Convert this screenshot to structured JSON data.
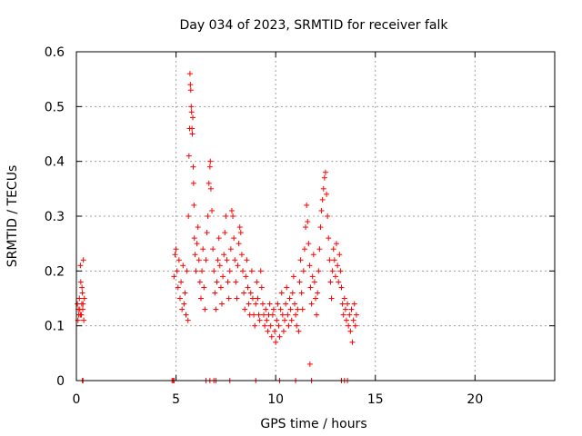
{
  "chart_data": {
    "type": "scatter",
    "title": "Day 034 of 2023, SRMTID for receiver falk",
    "xlabel": "GPS time / hours",
    "ylabel": "SRMTID / TECUs",
    "xlim": [
      0,
      24
    ],
    "ylim": [
      0,
      0.6
    ],
    "xticks": [
      0,
      5,
      10,
      15,
      20
    ],
    "xtick_labels": [
      "0",
      "5",
      "10",
      "15",
      "20"
    ],
    "yticks": [
      0,
      0.1,
      0.2,
      0.3,
      0.4,
      0.5,
      0.6
    ],
    "ytick_labels": [
      "0",
      "0.1",
      "0.2",
      "0.3",
      "0.4",
      "0.5",
      "0.6"
    ],
    "grid": true,
    "marker": "+",
    "color": "#ff0000",
    "series": [
      {
        "name": "SRMTID",
        "points": [
          [
            0.05,
            0.14
          ],
          [
            0.08,
            0.11
          ],
          [
            0.1,
            0.13
          ],
          [
            0.12,
            0.12
          ],
          [
            0.15,
            0.15
          ],
          [
            0.17,
            0.13
          ],
          [
            0.2,
            0.21
          ],
          [
            0.22,
            0.18
          ],
          [
            0.25,
            0.12
          ],
          [
            0.27,
            0.14
          ],
          [
            0.3,
            0.16
          ],
          [
            0.32,
            0.13
          ],
          [
            0.35,
            0.22
          ],
          [
            0.37,
            0.11
          ],
          [
            0.4,
            0.15
          ],
          [
            0.2,
            0.12
          ],
          [
            0.28,
            0.17
          ],
          [
            0.33,
            0.14
          ],
          [
            0.3,
            0.0
          ],
          [
            0.33,
            0.0
          ],
          [
            4.8,
            0.0
          ],
          [
            4.85,
            0.0
          ],
          [
            4.9,
            0.0
          ],
          [
            6.5,
            0.0
          ],
          [
            6.7,
            0.0
          ],
          [
            6.9,
            0.0
          ],
          [
            7.0,
            0.0
          ],
          [
            7.7,
            0.0
          ],
          [
            9.0,
            0.0
          ],
          [
            10.2,
            0.0
          ],
          [
            11.0,
            0.0
          ],
          [
            11.8,
            0.0
          ],
          [
            13.3,
            0.0
          ],
          [
            13.45,
            0.0
          ],
          [
            13.6,
            0.0
          ],
          [
            4.9,
            0.19
          ],
          [
            4.95,
            0.23
          ],
          [
            5.0,
            0.24
          ],
          [
            5.05,
            0.2
          ],
          [
            5.1,
            0.17
          ],
          [
            5.15,
            0.22
          ],
          [
            5.2,
            0.15
          ],
          [
            5.25,
            0.18
          ],
          [
            5.3,
            0.13
          ],
          [
            5.35,
            0.21
          ],
          [
            5.4,
            0.14
          ],
          [
            5.45,
            0.16
          ],
          [
            5.5,
            0.12
          ],
          [
            5.55,
            0.2
          ],
          [
            5.6,
            0.11
          ],
          [
            5.62,
            0.3
          ],
          [
            5.65,
            0.41
          ],
          [
            5.68,
            0.46
          ],
          [
            5.7,
            0.56
          ],
          [
            5.72,
            0.54
          ],
          [
            5.74,
            0.53
          ],
          [
            5.76,
            0.5
          ],
          [
            5.78,
            0.49
          ],
          [
            5.8,
            0.46
          ],
          [
            5.82,
            0.45
          ],
          [
            5.84,
            0.48
          ],
          [
            5.86,
            0.39
          ],
          [
            5.88,
            0.36
          ],
          [
            5.9,
            0.32
          ],
          [
            5.92,
            0.26
          ],
          [
            5.95,
            0.23
          ],
          [
            6.0,
            0.2
          ],
          [
            6.05,
            0.25
          ],
          [
            6.1,
            0.28
          ],
          [
            6.15,
            0.22
          ],
          [
            6.2,
            0.18
          ],
          [
            6.25,
            0.15
          ],
          [
            6.3,
            0.2
          ],
          [
            6.35,
            0.24
          ],
          [
            6.4,
            0.17
          ],
          [
            6.45,
            0.13
          ],
          [
            6.5,
            0.22
          ],
          [
            6.55,
            0.27
          ],
          [
            6.6,
            0.3
          ],
          [
            6.65,
            0.36
          ],
          [
            6.7,
            0.39
          ],
          [
            6.72,
            0.4
          ],
          [
            6.75,
            0.35
          ],
          [
            6.8,
            0.31
          ],
          [
            6.85,
            0.24
          ],
          [
            6.9,
            0.2
          ],
          [
            6.95,
            0.16
          ],
          [
            7.0,
            0.13
          ],
          [
            7.05,
            0.18
          ],
          [
            7.1,
            0.22
          ],
          [
            7.15,
            0.26
          ],
          [
            7.2,
            0.21
          ],
          [
            7.25,
            0.17
          ],
          [
            7.3,
            0.14
          ],
          [
            7.35,
            0.19
          ],
          [
            7.4,
            0.23
          ],
          [
            7.45,
            0.27
          ],
          [
            7.5,
            0.3
          ],
          [
            7.55,
            0.22
          ],
          [
            7.6,
            0.18
          ],
          [
            7.65,
            0.15
          ],
          [
            7.7,
            0.2
          ],
          [
            7.75,
            0.24
          ],
          [
            7.8,
            0.31
          ],
          [
            7.85,
            0.3
          ],
          [
            7.9,
            0.26
          ],
          [
            7.95,
            0.22
          ],
          [
            8.0,
            0.18
          ],
          [
            8.05,
            0.15
          ],
          [
            8.1,
            0.21
          ],
          [
            8.15,
            0.25
          ],
          [
            8.2,
            0.28
          ],
          [
            8.25,
            0.27
          ],
          [
            8.3,
            0.23
          ],
          [
            8.35,
            0.2
          ],
          [
            8.4,
            0.16
          ],
          [
            8.45,
            0.13
          ],
          [
            8.5,
            0.19
          ],
          [
            8.55,
            0.22
          ],
          [
            8.6,
            0.17
          ],
          [
            8.65,
            0.14
          ],
          [
            8.7,
            0.12
          ],
          [
            8.75,
            0.16
          ],
          [
            8.8,
            0.2
          ],
          [
            8.85,
            0.15
          ],
          [
            8.9,
            0.12
          ],
          [
            8.95,
            0.1
          ],
          [
            9.0,
            0.14
          ],
          [
            9.05,
            0.18
          ],
          [
            9.1,
            0.15
          ],
          [
            9.15,
            0.12
          ],
          [
            9.2,
            0.11
          ],
          [
            9.25,
            0.2
          ],
          [
            9.3,
            0.17
          ],
          [
            9.35,
            0.14
          ],
          [
            9.4,
            0.12
          ],
          [
            9.45,
            0.1
          ],
          [
            9.5,
            0.13
          ],
          [
            9.55,
            0.11
          ],
          [
            9.6,
            0.09
          ],
          [
            9.65,
            0.12
          ],
          [
            9.7,
            0.14
          ],
          [
            9.75,
            0.1
          ],
          [
            9.8,
            0.08
          ],
          [
            9.85,
            0.12
          ],
          [
            9.9,
            0.13
          ],
          [
            9.95,
            0.09
          ],
          [
            10.0,
            0.07
          ],
          [
            10.05,
            0.11
          ],
          [
            10.1,
            0.14
          ],
          [
            10.15,
            0.1
          ],
          [
            10.2,
            0.08
          ],
          [
            10.25,
            0.13
          ],
          [
            10.3,
            0.16
          ],
          [
            10.35,
            0.12
          ],
          [
            10.4,
            0.09
          ],
          [
            10.45,
            0.11
          ],
          [
            10.5,
            0.14
          ],
          [
            10.55,
            0.17
          ],
          [
            10.6,
            0.12
          ],
          [
            10.65,
            0.1
          ],
          [
            10.7,
            0.15
          ],
          [
            10.75,
            0.13
          ],
          [
            10.8,
            0.11
          ],
          [
            10.85,
            0.16
          ],
          [
            10.9,
            0.19
          ],
          [
            10.95,
            0.14
          ],
          [
            11.0,
            0.12
          ],
          [
            11.05,
            0.1
          ],
          [
            11.1,
            0.13
          ],
          [
            11.15,
            0.09
          ],
          [
            11.2,
            0.18
          ],
          [
            11.25,
            0.22
          ],
          [
            11.3,
            0.16
          ],
          [
            11.35,
            0.13
          ],
          [
            11.4,
            0.2
          ],
          [
            11.45,
            0.24
          ],
          [
            11.5,
            0.28
          ],
          [
            11.55,
            0.32
          ],
          [
            11.6,
            0.29
          ],
          [
            11.65,
            0.25
          ],
          [
            11.7,
            0.21
          ],
          [
            11.72,
            0.03
          ],
          [
            11.75,
            0.17
          ],
          [
            11.8,
            0.14
          ],
          [
            11.85,
            0.19
          ],
          [
            11.9,
            0.23
          ],
          [
            11.95,
            0.18
          ],
          [
            12.0,
            0.15
          ],
          [
            12.05,
            0.12
          ],
          [
            12.1,
            0.16
          ],
          [
            12.15,
            0.2
          ],
          [
            12.2,
            0.24
          ],
          [
            12.25,
            0.28
          ],
          [
            12.3,
            0.31
          ],
          [
            12.35,
            0.33
          ],
          [
            12.4,
            0.35
          ],
          [
            12.45,
            0.37
          ],
          [
            12.5,
            0.38
          ],
          [
            12.55,
            0.34
          ],
          [
            12.6,
            0.3
          ],
          [
            12.65,
            0.26
          ],
          [
            12.7,
            0.22
          ],
          [
            12.75,
            0.18
          ],
          [
            12.8,
            0.15
          ],
          [
            12.85,
            0.2
          ],
          [
            12.9,
            0.24
          ],
          [
            12.95,
            0.22
          ],
          [
            13.0,
            0.19
          ],
          [
            13.05,
            0.25
          ],
          [
            13.1,
            0.21
          ],
          [
            13.15,
            0.18
          ],
          [
            13.2,
            0.23
          ],
          [
            13.25,
            0.2
          ],
          [
            13.3,
            0.17
          ],
          [
            13.35,
            0.14
          ],
          [
            13.4,
            0.12
          ],
          [
            13.45,
            0.15
          ],
          [
            13.5,
            0.13
          ],
          [
            13.55,
            0.11
          ],
          [
            13.6,
            0.14
          ],
          [
            13.65,
            0.1
          ],
          [
            13.7,
            0.12
          ],
          [
            13.75,
            0.09
          ],
          [
            13.8,
            0.13
          ],
          [
            13.85,
            0.07
          ],
          [
            13.9,
            0.11
          ],
          [
            13.95,
            0.14
          ],
          [
            14.0,
            0.1
          ],
          [
            14.05,
            0.12
          ]
        ]
      }
    ]
  }
}
